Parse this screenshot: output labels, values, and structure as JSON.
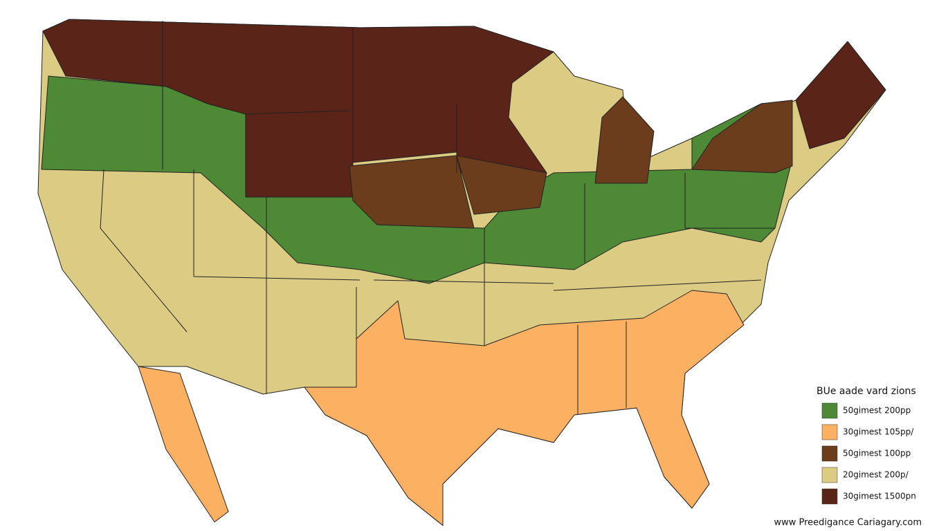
{
  "legend": {
    "title": "BUe aade vard zions",
    "items": [
      {
        "label": "50gimest 200pp",
        "color": "#4e8a35"
      },
      {
        "label": "30gimest 105pp/",
        "color": "#fcb062"
      },
      {
        "label": "50gimest 100pp",
        "color": "#6b3d1c"
      },
      {
        "label": "20gimest 200p/",
        "color": "#dccb83"
      },
      {
        "label": "30gimest 1500pn",
        "color": "#5a2418"
      }
    ]
  },
  "footer": "www Preedigance Cariagary.com"
}
